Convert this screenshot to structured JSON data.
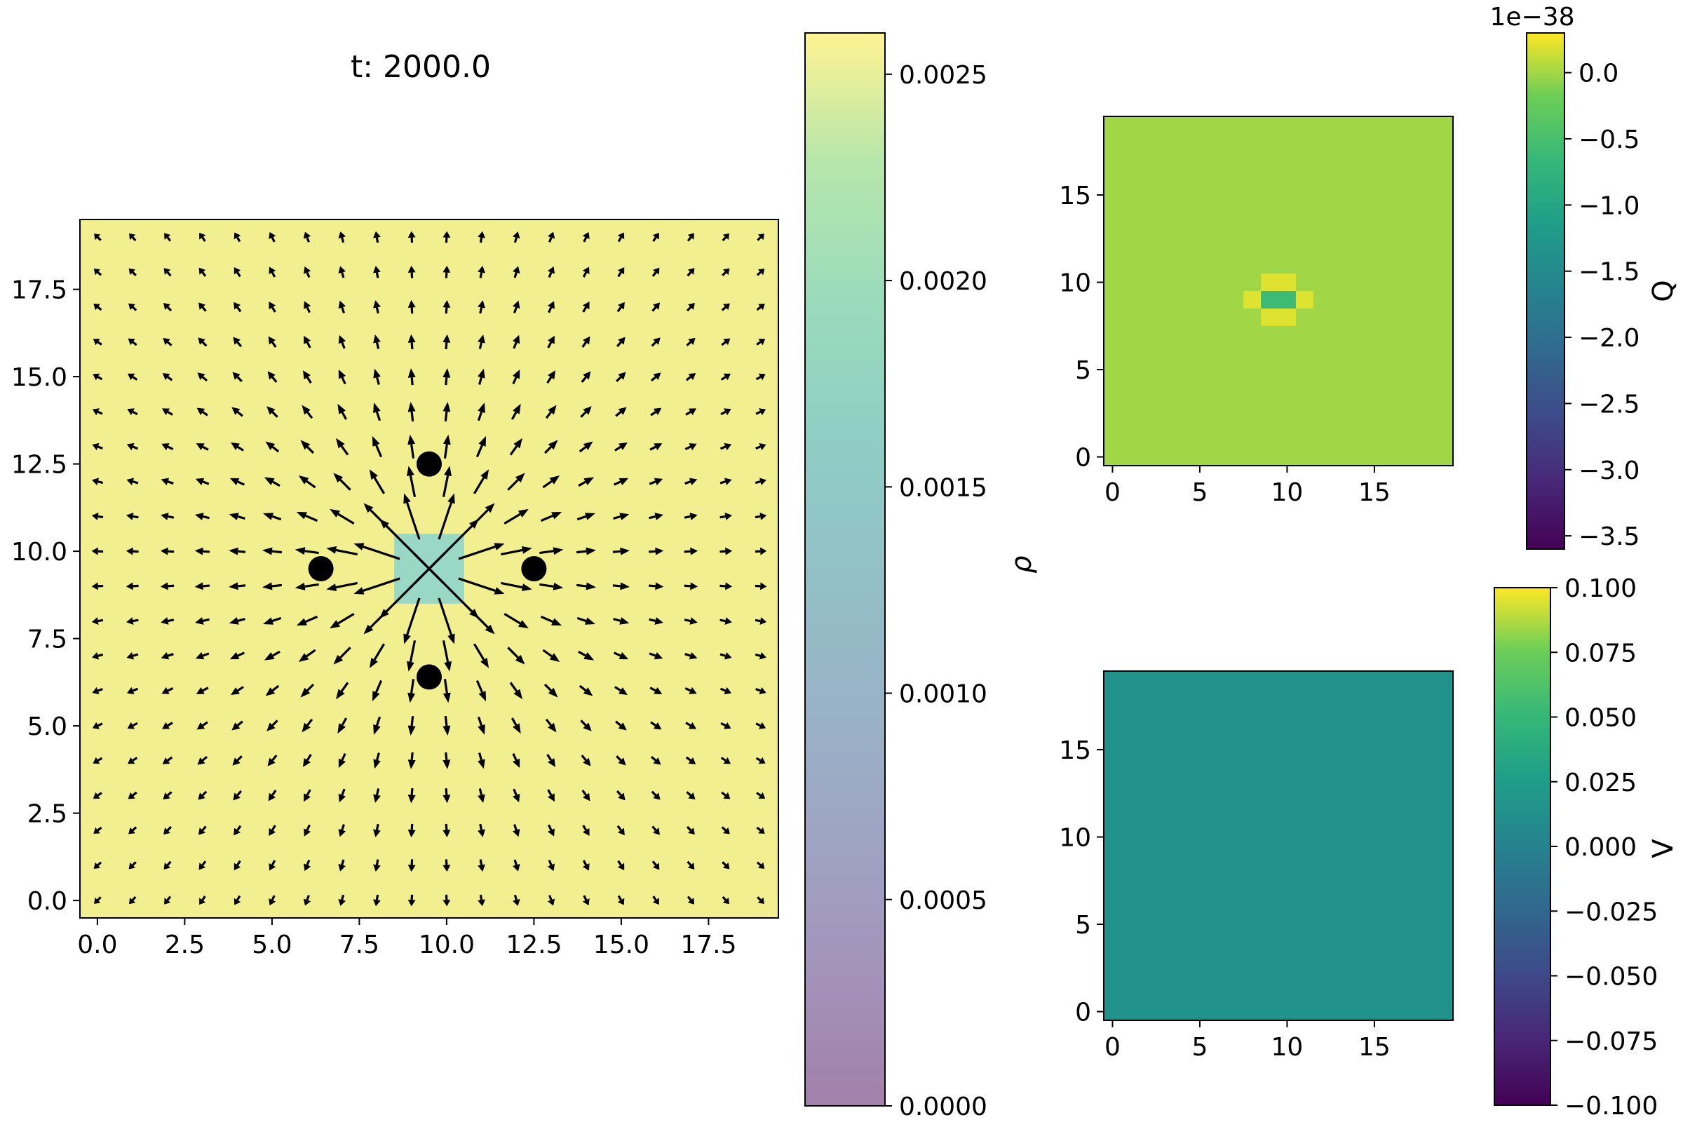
{
  "figure": {
    "title": "t: 2000.0"
  },
  "chart_data": [
    {
      "type": "heatmap",
      "panel": "density-quiver",
      "title": "t: 2000.0",
      "grid_shape": [
        20,
        20
      ],
      "x_range": [
        -0.5,
        19.5
      ],
      "y_range": [
        -0.5,
        19.5
      ],
      "x_ticks": [
        0.0,
        2.5,
        5.0,
        7.5,
        10.0,
        12.5,
        15.0,
        17.5
      ],
      "y_ticks": [
        0.0,
        2.5,
        5.0,
        7.5,
        10.0,
        12.5,
        15.0,
        17.5
      ],
      "tick_format": 1,
      "field": "uniform density ~0.0026, with a low-density square at cells x=9..10, y=9..10",
      "background_value": 0.0026,
      "low_region": {
        "x": [
          9,
          10
        ],
        "y": [
          9,
          10
        ],
        "value": 0.0014
      },
      "colormap_alpha": 0.5,
      "quiver": {
        "type": "radial outward field centered at (9.5, 9.5)",
        "center": [
          9.5,
          9.5
        ]
      },
      "charges": [
        {
          "x": 9.5,
          "y": 12.5
        },
        {
          "x": 6.4,
          "y": 9.5
        },
        {
          "x": 12.5,
          "y": 9.5
        },
        {
          "x": 9.5,
          "y": 6.4
        }
      ],
      "colorbar": {
        "label": "ρ",
        "range": [
          0.0,
          0.0026
        ],
        "ticks": [
          "0.0000",
          "0.0005",
          "0.0010",
          "0.0015",
          "0.0020",
          "0.0025"
        ],
        "tick_values": [
          0.0,
          0.0005,
          0.001,
          0.0015,
          0.002,
          0.0025
        ]
      },
      "grid": false
    },
    {
      "type": "heatmap",
      "panel": "Q-map",
      "grid_shape": [
        20,
        20
      ],
      "x_range": [
        -0.5,
        19.5
      ],
      "y_range": [
        -0.5,
        19.5
      ],
      "x_ticks": [
        0,
        5,
        10,
        15
      ],
      "y_ticks": [
        0,
        5,
        10,
        15
      ],
      "background_value": 0.0,
      "cells": [
        {
          "x": 9,
          "y": 10,
          "value": 0.2
        },
        {
          "x": 10,
          "y": 10,
          "value": 0.2
        },
        {
          "x": 8,
          "y": 9,
          "value": 0.2
        },
        {
          "x": 11,
          "y": 9,
          "value": 0.2
        },
        {
          "x": 9,
          "y": 8,
          "value": 0.2
        },
        {
          "x": 10,
          "y": 8,
          "value": 0.2
        },
        {
          "x": 9,
          "y": 9,
          "value": -0.6
        },
        {
          "x": 10,
          "y": 9,
          "value": -0.6
        }
      ],
      "colorbar": {
        "label": "Q",
        "offset_text": "1e−38",
        "range": [
          -3.6,
          0.3
        ],
        "ticks": [
          "0.0",
          "−0.5",
          "−1.0",
          "−1.5",
          "−2.0",
          "−2.5",
          "−3.0",
          "−3.5"
        ],
        "tick_values": [
          0.0,
          -0.5,
          -1.0,
          -1.5,
          -2.0,
          -2.5,
          -3.0,
          -3.5
        ]
      },
      "grid": false
    },
    {
      "type": "heatmap",
      "panel": "V-map",
      "grid_shape": [
        20,
        20
      ],
      "x_range": [
        -0.5,
        19.5
      ],
      "y_range": [
        -0.5,
        19.5
      ],
      "x_ticks": [
        0,
        5,
        10,
        15
      ],
      "y_ticks": [
        0,
        5,
        10,
        15
      ],
      "background_value": 0.0,
      "colorbar": {
        "label": "V",
        "range": [
          -0.1,
          0.1
        ],
        "ticks": [
          "0.100",
          "0.075",
          "0.050",
          "0.025",
          "0.000",
          "−0.025",
          "−0.050",
          "−0.075",
          "−0.100"
        ],
        "tick_values": [
          0.1,
          0.075,
          0.05,
          0.025,
          0.0,
          -0.025,
          -0.05,
          -0.075,
          -0.1
        ]
      },
      "grid": false
    }
  ]
}
